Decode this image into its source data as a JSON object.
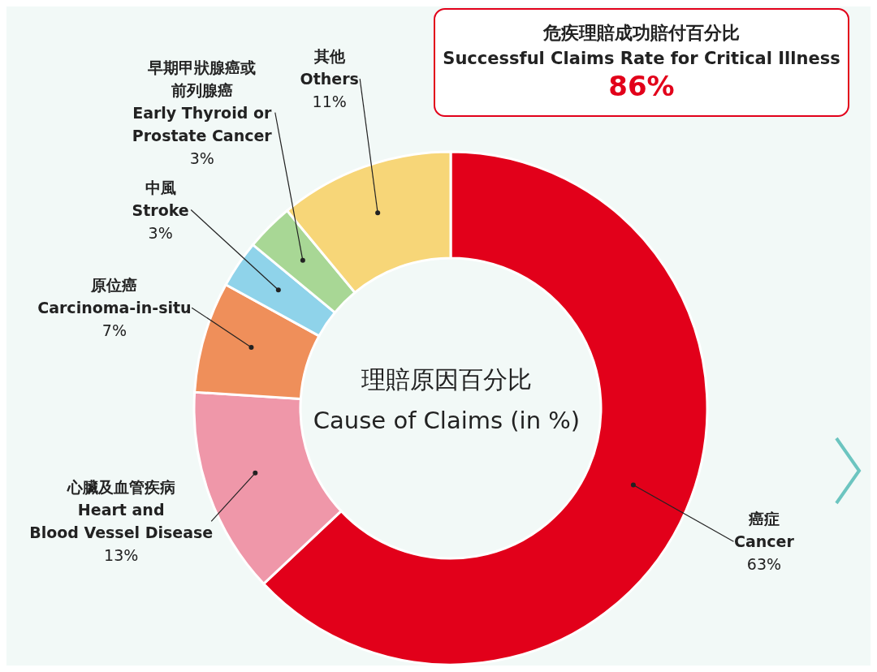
{
  "chart_data": {
    "type": "donut",
    "title": "理賠原因百分比",
    "subtitle": "Cause of Claims (in %)",
    "categories": [
      "癌症\nCancer",
      "心臟及血管疾病\nHeart and\nBlood Vessel Disease",
      "原位癌\nCarcinoma-in-situ",
      "中風\nStroke",
      "早期甲狀腺癌或前列腺癌\nEarly Thyroid or\nProstate Cancer",
      "其他\nOthers"
    ],
    "values": [
      63,
      13,
      7,
      3,
      3,
      11
    ],
    "value_labels": [
      "63%",
      "13%",
      "7%",
      "3%",
      "3%",
      "11%"
    ],
    "colors": [
      "#e2001a",
      "#ef97a9",
      "#ef8f5a",
      "#8fd3ea",
      "#a8d795",
      "#f7d678"
    ],
    "annotations": [
      "危疾理賠成功賠付百分比",
      "Successful Claims Rate for Critical Illness",
      "86%"
    ],
    "legend": false
  }
}
